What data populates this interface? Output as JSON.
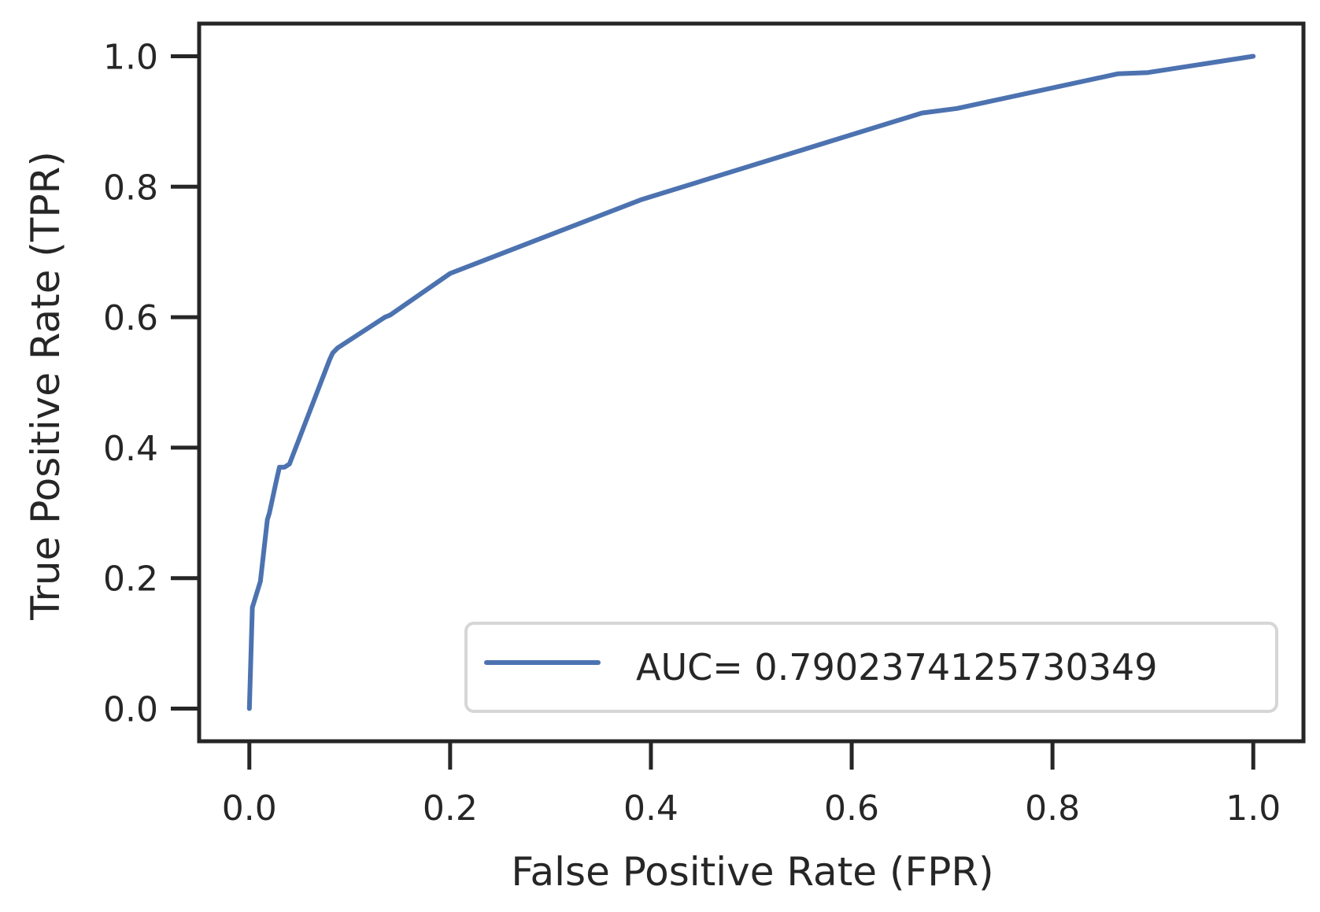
{
  "chart_data": {
    "type": "line",
    "title": "",
    "xlabel": "False Positive Rate (FPR)",
    "ylabel": "True Positive Rate (TPR)",
    "xlim": [
      -0.05,
      1.05
    ],
    "ylim": [
      -0.05,
      1.05
    ],
    "xticks": [
      0.0,
      0.2,
      0.4,
      0.6,
      0.8,
      1.0
    ],
    "yticks": [
      0.0,
      0.2,
      0.4,
      0.6,
      0.8,
      1.0
    ],
    "xtick_labels": [
      "0.0",
      "0.2",
      "0.4",
      "0.6",
      "0.8",
      "1.0"
    ],
    "ytick_labels": [
      "0.0",
      "0.2",
      "0.4",
      "0.6",
      "0.8",
      "1.0"
    ],
    "grid": false,
    "legend": {
      "placement": "lower-right"
    },
    "series": [
      {
        "name": "AUC= 0.7902374125730349",
        "color": "#4c72b0",
        "x": [
          0.0,
          0.003,
          0.011,
          0.018,
          0.02,
          0.027,
          0.03,
          0.035,
          0.04,
          0.08,
          0.083,
          0.088,
          0.135,
          0.14,
          0.2,
          0.39,
          0.67,
          0.705,
          0.865,
          0.895,
          1.0
        ],
        "y": [
          0.0,
          0.155,
          0.195,
          0.29,
          0.3,
          0.35,
          0.37,
          0.37,
          0.375,
          0.535,
          0.545,
          0.553,
          0.6,
          0.603,
          0.667,
          0.78,
          0.913,
          0.92,
          0.973,
          0.975,
          1.0
        ]
      }
    ]
  }
}
